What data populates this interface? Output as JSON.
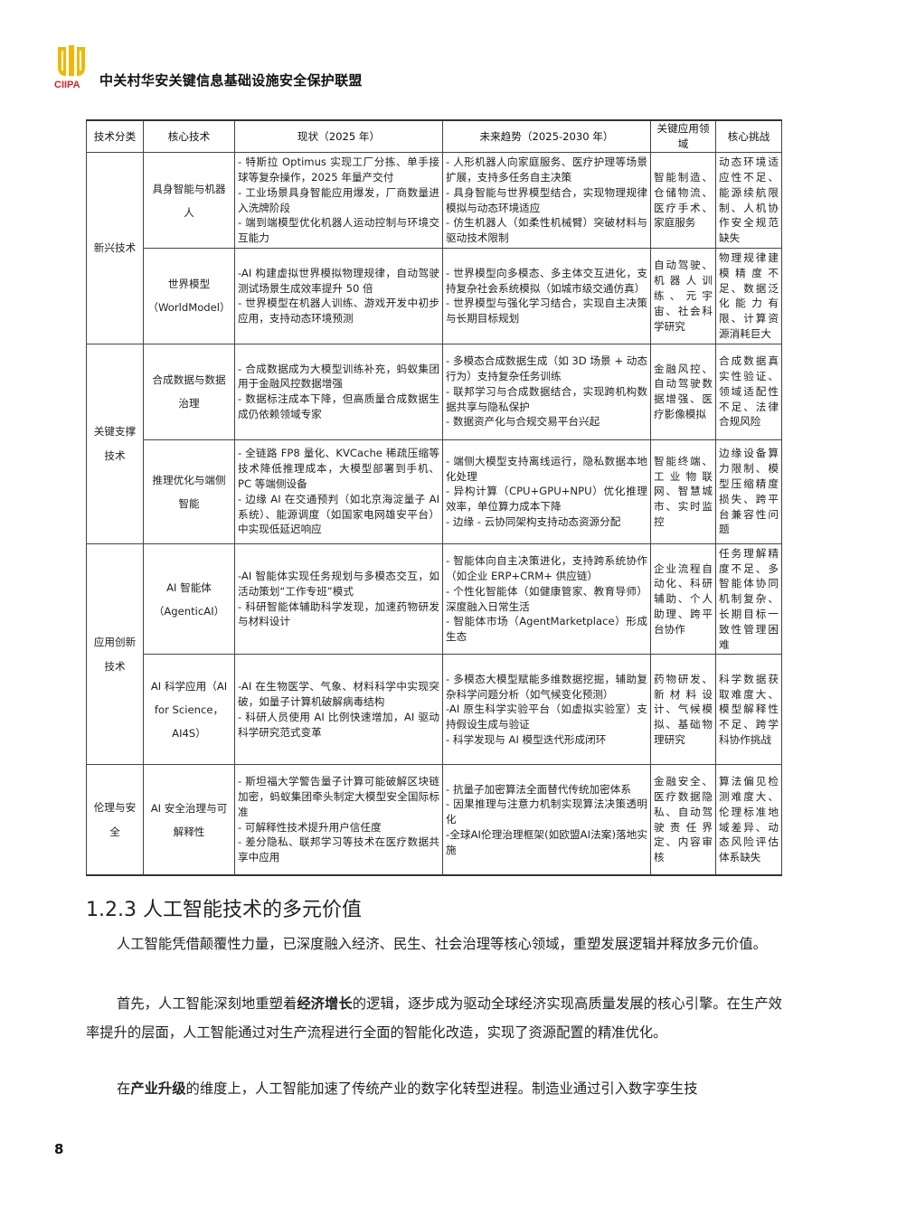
{
  "header": {
    "org_name": "中关村华安关键信息基础设施安全保护联盟",
    "logo_text": "CIIPA"
  },
  "table": {
    "columns": [
      "技术分类",
      "核心技术",
      "现状（2025 年）",
      "未来趋势（2025-2030 年）",
      "关键应用领域",
      "核心挑战"
    ],
    "categories": [
      {
        "name": "新兴技术"
      },
      {
        "name": "关键支撑技术"
      },
      {
        "name": "应用创新技术"
      },
      {
        "name": "伦理与安全"
      }
    ],
    "rows": [
      {
        "core": "具身智能与机器人",
        "status": [
          "- 特斯拉 Optimus 实现工厂分拣、单手接球等复杂操作，2025 年量产交付",
          "- 工业场景具身智能应用爆发，厂商数量进入洗牌阶段",
          "- 端到端模型优化机器人运动控制与环境交互能力"
        ],
        "trend": [
          "- 人形机器人向家庭服务、医疗护理等场景扩展，支持多任务自主决策",
          "- 具身智能与世界模型结合，实现物理规律模拟与动态环境适应",
          "- 仿生机器人（如柔性机械臂）突破材料与驱动技术限制"
        ],
        "fields": "智能制造、仓储物流、医疗手术、家庭服务",
        "challenge": "动态环境适应性不足、能源续航限制、人机协作安全规范缺失"
      },
      {
        "core": "世界模型（WorldModel）",
        "status": [
          "-AI 构建虚拟世界模拟物理规律，自动驾驶测试场景生成效率提升 50 倍",
          "- 世界模型在机器人训练、游戏开发中初步应用，支持动态环境预测"
        ],
        "trend": [
          "- 世界模型向多模态、多主体交互进化，支持复杂社会系统模拟（如城市级交通仿真）",
          "- 世界模型与强化学习结合，实现自主决策与长期目标规划"
        ],
        "fields": "自动驾驶、机器人训练、元宇宙、社会科学研究",
        "challenge": "物理规律建模精度不足、数据泛化能力有限、计算资源消耗巨大"
      },
      {
        "core": "合成数据与数据治理",
        "status": [
          "- 合成数据成为大模型训练补充，蚂蚁集团用于金融风控数据增强",
          "- 数据标注成本下降，但高质量合成数据生成仍依赖领域专家"
        ],
        "trend": [
          "- 多模态合成数据生成（如 3D 场景 + 动态行为）支持复杂任务训练",
          "- 联邦学习与合成数据结合，实现跨机构数据共享与隐私保护",
          "- 数据资产化与合规交易平台兴起"
        ],
        "fields": "金融风控、自动驾驶数据增强、医疗影像模拟",
        "challenge": "合成数据真实性验证、领域适配性不足、法律合规风险"
      },
      {
        "core": "推理优化与端侧智能",
        "status": [
          "- 全链路 FP8 量化、KVCache 稀疏压缩等技术降低推理成本，大模型部署到手机、PC 等端侧设备",
          "- 边缘 AI 在交通预判（如北京海淀量子 AI 系统）、能源调度（如国家电网雄安平台）中实现低延迟响应"
        ],
        "trend": [
          "- 端侧大模型支持离线运行，隐私数据本地化处理",
          "- 异构计算（CPU+GPU+NPU）优化推理效率，单位算力成本下降",
          "- 边缘 - 云协同架构支持动态资源分配"
        ],
        "fields": "智能终端、工业物联网、智慧城市、实时监控",
        "challenge": "边缘设备算力限制、模型压缩精度损失、跨平台兼容性问题"
      },
      {
        "core": "AI 智能体（AgenticAI）",
        "status": [
          "-AI 智能体实现任务规划与多模态交互，如活动策划“工作专班”模式",
          "- 科研智能体辅助科学发现，加速药物研发与材料设计"
        ],
        "trend": [
          "- 智能体向自主决策进化，支持跨系统协作（如企业 ERP+CRM+ 供应链）",
          "- 个性化智能体（如健康管家、教育导师）深度融入日常生活",
          "- 智能体市场（AgentMarketplace）形成生态"
        ],
        "fields": "企业流程自动化、科研辅助、个人助理、跨平台协作",
        "challenge": "任务理解精度不足、多智能体协同机制复杂、长期目标一致性管理困难"
      },
      {
        "core": "AI 科学应用（AI for Science，AI4S）",
        "status": [
          "-AI 在生物医学、气象、材料科学中实现突破，如量子计算机破解病毒结构",
          "- 科研人员使用 AI 比例快速增加，AI 驱动科学研究范式变革"
        ],
        "trend": [
          "- 多模态大模型赋能多维数据挖掘，辅助复杂科学问题分析（如气候变化预测）",
          "-AI 原生科学实验平台（如虚拟实验室）支持假设生成与验证",
          "- 科学发现与 AI 模型迭代形成闭环"
        ],
        "fields": "药物研发、新材料设计、气候模拟、基础物理研究",
        "challenge": "科学数据获取难度大、模型解释性不足、跨学科协作挑战"
      },
      {
        "core": "AI 安全治理与可解释性",
        "status": [
          "- 斯坦福大学警告量子计算可能破解区块链加密，蚂蚁集团牵头制定大模型安全国际标准",
          "- 可解释性技术提升用户信任度",
          "- 差分隐私、联邦学习等技术在医疗数据共享中应用"
        ],
        "trend": [
          "- 抗量子加密算法全面替代传统加密体系",
          "- 因果推理与注意力机制实现算法决策透明化",
          "-全球AI伦理治理框架(如欧盟AI法案)落地实施"
        ],
        "fields": "金融安全、医疗数据隐私、自动驾驶责任界定、内容审核",
        "challenge": "算法偏见检测难度大、伦理标准地域差异、动态风险评估体系缺失"
      }
    ]
  },
  "section": {
    "title": "1.2.3 人工智能技术的多元价值",
    "paragraphs": [
      {
        "text": "人工智能凭借颠覆性力量，已深度融入经济、民生、社会治理等核心领域，重塑发展逻辑并释放多元价值。"
      },
      {
        "text_before": "首先，人工智能深刻地重塑着",
        "bold": "经济增长",
        "text_after": "的逻辑，逐步成为驱动全球经济实现高质量发展的核心引擎。在生产效率提升的层面，人工智能通过对生产流程进行全面的智能化改造，实现了资源配置的精准优化。"
      },
      {
        "text_before": "在",
        "bold": "产业升级",
        "text_after": "的维度上，人工智能加速了传统产业的数字化转型进程。制造业通过引入数字孪生技"
      }
    ]
  },
  "footer": {
    "page_number": "8"
  }
}
